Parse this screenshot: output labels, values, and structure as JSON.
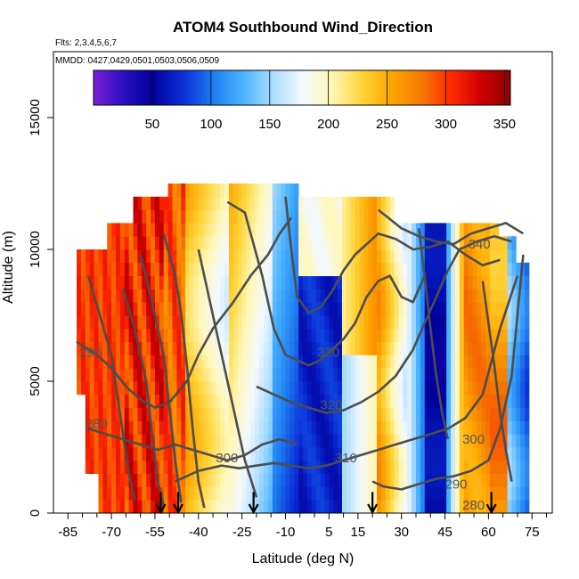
{
  "chart_data": {
    "type": "heatmap",
    "title": "ATOM4 Southbound Wind_Direction",
    "flights_note": "Flts: 2,3,4,5,6,7",
    "dates_note": "MMDD: 0427,0429,0501,0503,0506,0509",
    "xlabel": "Latitude (deg N)",
    "ylabel": "Altitude (m)",
    "xlim": [
      -90,
      82
    ],
    "ylim": [
      0,
      17500
    ],
    "x_ticks": [
      -85,
      -70,
      -55,
      -40,
      -25,
      -10,
      5,
      15,
      30,
      45,
      60,
      75
    ],
    "y_ticks": [
      0,
      5000,
      10000,
      15000
    ],
    "colorbar": {
      "range": [
        0,
        355
      ],
      "ticks": [
        50,
        100,
        150,
        200,
        250,
        300,
        350
      ],
      "colors": [
        "#7b1fd6",
        "#2a10c0",
        "#00009a",
        "#0b2fd8",
        "#1e7df0",
        "#49b2ff",
        "#a8dcff",
        "#f2f8ff",
        "#fff7b8",
        "#ffd53a",
        "#ffa600",
        "#f47a00",
        "#ff2a00",
        "#d10000",
        "#8e0000"
      ]
    },
    "contour_levels": [
      280,
      290,
      300,
      310,
      320,
      330,
      340
    ],
    "profile_markers_lat": [
      -53,
      -47,
      -21,
      20,
      61
    ]
  }
}
